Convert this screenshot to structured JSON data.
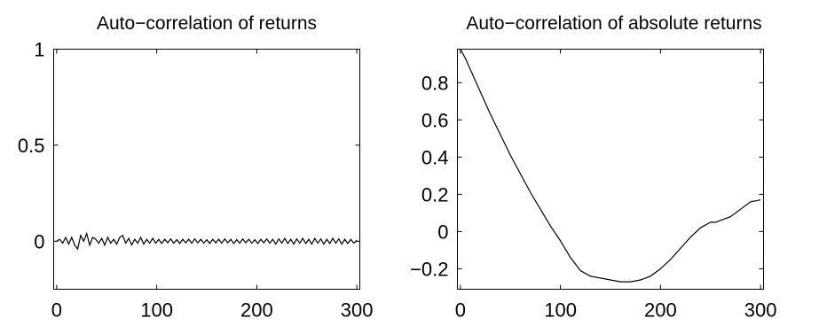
{
  "chart_data": [
    {
      "type": "line",
      "title": "Auto−correlation of  returns",
      "xlabel": "",
      "ylabel": "",
      "xlim": [
        -3,
        303
      ],
      "ylim": [
        -0.25,
        1.0
      ],
      "xticks": [
        0,
        100,
        200,
        300
      ],
      "xtick_labels": [
        "0",
        "100",
        "200",
        "300"
      ],
      "yticks": [
        0,
        0.5,
        1
      ],
      "ytick_labels": [
        "0",
        "0.5",
        "1"
      ],
      "grid": false,
      "series": [
        {
          "x": [
            0,
            3,
            6,
            9,
            12,
            15,
            18,
            21,
            24,
            27,
            30,
            33,
            36,
            39,
            42,
            45,
            48,
            51,
            54,
            57,
            60,
            63,
            66,
            69,
            72,
            75,
            78,
            81,
            84,
            87,
            90,
            93,
            96,
            99,
            102,
            105,
            108,
            111,
            114,
            117,
            120,
            123,
            126,
            129,
            132,
            135,
            138,
            141,
            144,
            147,
            150,
            153,
            156,
            159,
            162,
            165,
            168,
            171,
            174,
            177,
            180,
            183,
            186,
            189,
            192,
            195,
            198,
            201,
            204,
            207,
            210,
            213,
            216,
            219,
            222,
            225,
            228,
            231,
            234,
            237,
            240,
            243,
            246,
            249,
            252,
            255,
            258,
            261,
            264,
            267,
            270,
            273,
            276,
            279,
            282,
            285,
            288,
            291,
            294,
            297,
            300
          ],
          "y": [
            0.0,
            0.01,
            -0.01,
            0.02,
            -0.015,
            0.02,
            -0.02,
            -0.04,
            0.03,
            0.0,
            0.04,
            -0.02,
            0.02,
            0.01,
            -0.01,
            0.015,
            -0.02,
            0.02,
            -0.01,
            0.01,
            -0.015,
            0.02,
            0.03,
            -0.01,
            0.015,
            -0.02,
            0.01,
            -0.01,
            0.02,
            -0.015,
            0.01,
            -0.01,
            0.015,
            -0.01,
            0.01,
            -0.012,
            0.01,
            -0.008,
            0.012,
            -0.01,
            0.008,
            -0.012,
            0.01,
            -0.008,
            0.01,
            -0.01,
            0.012,
            -0.008,
            0.01,
            -0.01,
            0.008,
            -0.012,
            0.01,
            -0.008,
            0.01,
            -0.01,
            0.012,
            -0.008,
            0.01,
            -0.012,
            0.008,
            -0.01,
            0.012,
            -0.008,
            0.01,
            -0.01,
            0.008,
            -0.012,
            0.01,
            -0.008,
            0.012,
            -0.01,
            0.01,
            -0.015,
            0.012,
            -0.01,
            0.015,
            -0.012,
            0.01,
            -0.015,
            0.012,
            -0.01,
            0.015,
            -0.012,
            0.01,
            -0.015,
            0.015,
            -0.01,
            0.012,
            -0.015,
            0.01,
            -0.012,
            0.015,
            -0.01,
            0.012,
            -0.015,
            0.01,
            -0.012,
            0.01,
            -0.01,
            0.005
          ]
        }
      ]
    },
    {
      "type": "line",
      "title": "Auto−correlation of  absolute returns",
      "xlabel": "",
      "ylabel": "",
      "xlim": [
        -3,
        303
      ],
      "ylim": [
        -0.31,
        0.98
      ],
      "xticks": [
        0,
        100,
        200,
        300
      ],
      "xtick_labels": [
        "0",
        "100",
        "200",
        "300"
      ],
      "yticks": [
        -0.2,
        0,
        0.2,
        0.4,
        0.6,
        0.8
      ],
      "ytick_labels": [
        "−0.2",
        "0",
        "0.2",
        "0.4",
        "0.6",
        "0.8"
      ],
      "grid": false,
      "series": [
        {
          "x": [
            0,
            5,
            10,
            20,
            30,
            40,
            50,
            60,
            70,
            80,
            90,
            100,
            110,
            120,
            130,
            140,
            150,
            160,
            170,
            180,
            190,
            200,
            210,
            220,
            230,
            240,
            250,
            255,
            260,
            270,
            280,
            290,
            300
          ],
          "y": [
            0.98,
            0.93,
            0.87,
            0.75,
            0.63,
            0.52,
            0.41,
            0.31,
            0.21,
            0.12,
            0.03,
            -0.05,
            -0.14,
            -0.21,
            -0.24,
            -0.25,
            -0.26,
            -0.27,
            -0.27,
            -0.26,
            -0.24,
            -0.2,
            -0.15,
            -0.09,
            -0.03,
            0.02,
            0.05,
            0.05,
            0.06,
            0.08,
            0.12,
            0.16,
            0.17
          ]
        }
      ]
    }
  ]
}
